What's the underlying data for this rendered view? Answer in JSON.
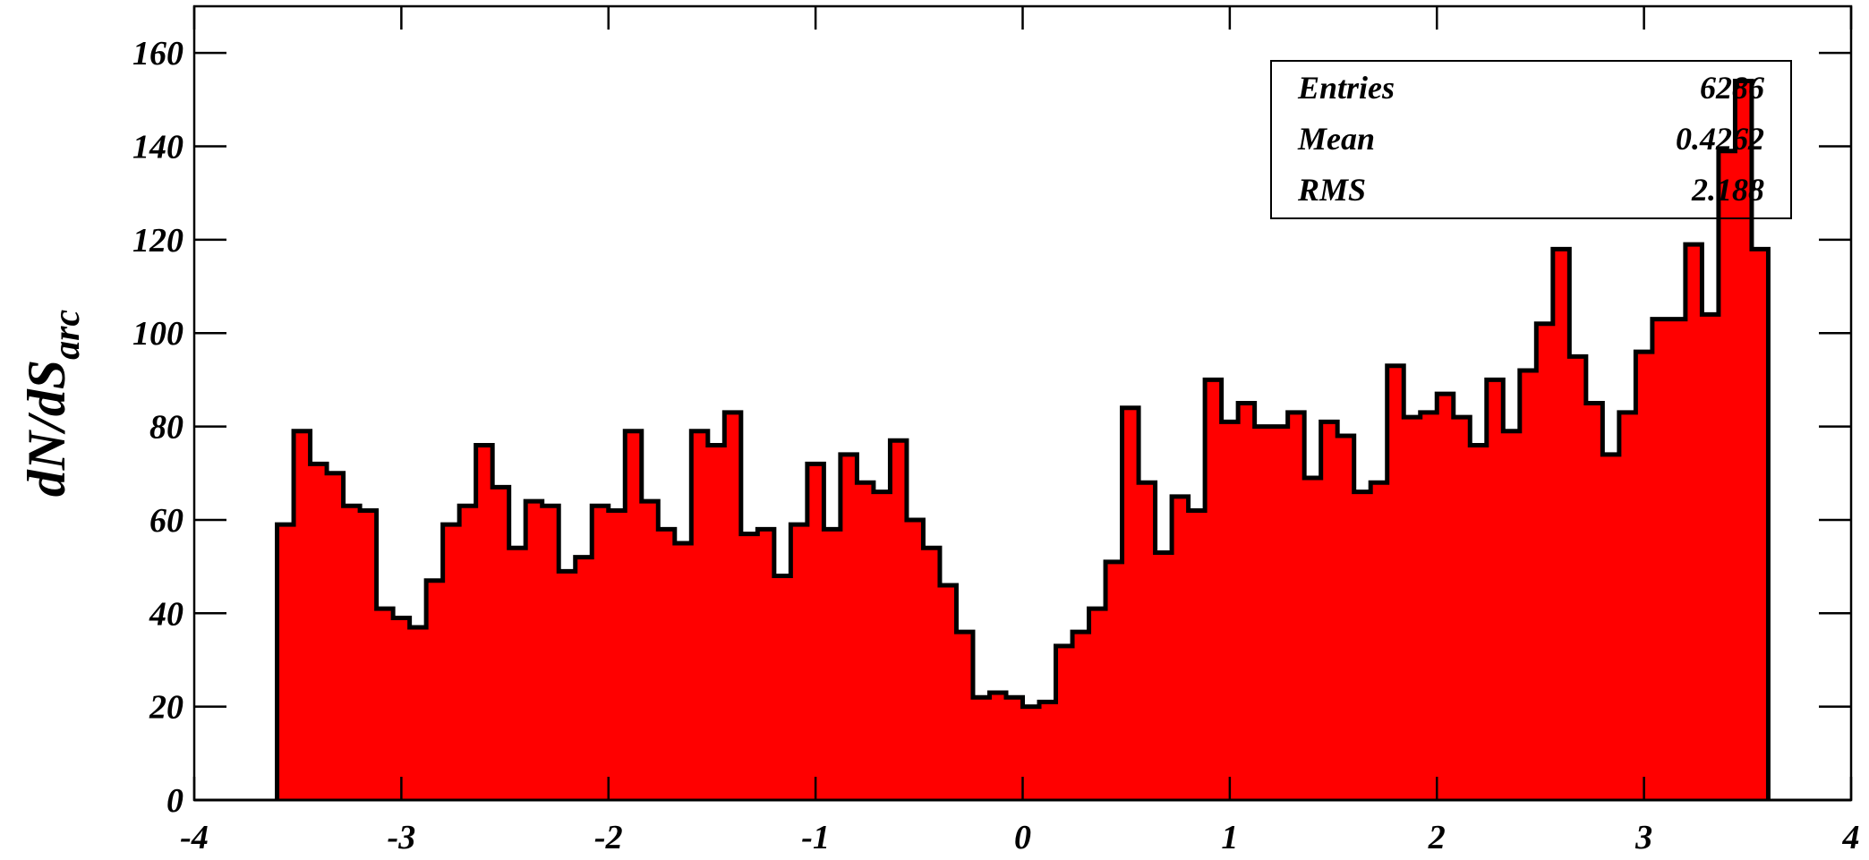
{
  "chart_data": {
    "type": "histogram",
    "y_label": "dN/dS",
    "y_label_subscript": "arc",
    "bins": [
      -3.6,
      -3.52,
      -3.44,
      -3.36,
      -3.28,
      -3.2,
      -3.12,
      -3.04,
      -2.96,
      -2.88,
      -2.8,
      -2.72,
      -2.64,
      -2.56,
      -2.48,
      -2.4,
      -2.32,
      -2.24,
      -2.16,
      -2.08,
      -2.0,
      -1.92,
      -1.84,
      -1.76,
      -1.68,
      -1.6,
      -1.52,
      -1.44,
      -1.36,
      -1.28,
      -1.2,
      -1.12,
      -1.04,
      -0.96,
      -0.88,
      -0.8,
      -0.72,
      -0.64,
      -0.56,
      -0.48,
      -0.4,
      -0.32,
      -0.24,
      -0.16,
      -0.08,
      0,
      0.08,
      0.16,
      0.24,
      0.32,
      0.4,
      0.48,
      0.56,
      0.64,
      0.72,
      0.8,
      0.88,
      0.96,
      1.04,
      1.12,
      1.2,
      1.28,
      1.36,
      1.44,
      1.52,
      1.6,
      1.68,
      1.76,
      1.84,
      1.92,
      2.0,
      2.08,
      2.16,
      2.24,
      2.32,
      2.4,
      2.48,
      2.56,
      2.64,
      2.72,
      2.8,
      2.88,
      2.96,
      3.04,
      3.12,
      3.2,
      3.28,
      3.36,
      3.44,
      3.52,
      3.6
    ],
    "values": [
      59,
      79,
      72,
      70,
      63,
      62,
      41,
      39,
      37,
      47,
      59,
      63,
      76,
      67,
      54,
      64,
      63,
      49,
      52,
      63,
      62,
      79,
      64,
      58,
      55,
      79,
      76,
      83,
      57,
      58,
      48,
      59,
      72,
      58,
      74,
      68,
      66,
      77,
      60,
      54,
      46,
      36,
      22,
      23,
      22,
      20,
      21,
      33,
      36,
      41,
      51,
      84,
      68,
      53,
      65,
      62,
      90,
      81,
      85,
      80,
      80,
      83,
      69,
      81,
      78,
      66,
      68,
      93,
      82,
      83,
      87,
      82,
      76,
      90,
      79,
      92,
      102,
      118,
      95,
      85,
      74,
      83,
      96,
      103,
      103,
      119,
      104,
      139,
      154,
      118
    ],
    "color": "#ff0000",
    "edge_color": "#000000",
    "xlim": [
      -4,
      4
    ],
    "xticks": [
      -4,
      -3,
      -2,
      -1,
      0,
      1,
      2,
      3,
      4
    ],
    "ylim": [
      0,
      170
    ],
    "yticks": [
      0,
      20,
      40,
      60,
      80,
      100,
      120,
      140,
      160
    ],
    "stats": [
      {
        "name": "Entries",
        "value": "6286"
      },
      {
        "name": "Mean",
        "value": "0.4262"
      },
      {
        "name": "RMS",
        "value": "2.188"
      }
    ]
  }
}
